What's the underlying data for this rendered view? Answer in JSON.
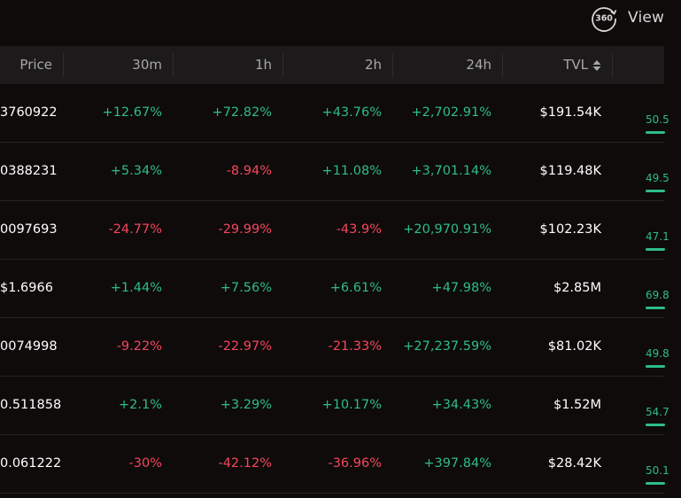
{
  "header_actions": {
    "view_label": "View",
    "view_icon": "360-view-icon"
  },
  "table": {
    "columns": [
      {
        "key": "price",
        "label": "Price"
      },
      {
        "key": "m30",
        "label": "30m"
      },
      {
        "key": "h1",
        "label": "1h"
      },
      {
        "key": "h2",
        "label": "2h"
      },
      {
        "key": "h24",
        "label": "24h"
      },
      {
        "key": "tvl",
        "label": "TVL",
        "sortable": true,
        "sort_icon": "sort-updown-icon"
      }
    ],
    "rows": [
      {
        "price": "3760922",
        "m30": "+12.67%",
        "h1": "+72.82%",
        "h2": "+43.76%",
        "h24": "+2,702.91%",
        "tvl": "$191.54K",
        "extra": "50.5"
      },
      {
        "price": "0388231",
        "m30": "+5.34%",
        "h1": "-8.94%",
        "h2": "+11.08%",
        "h24": "+3,701.14%",
        "tvl": "$119.48K",
        "extra": "49.5"
      },
      {
        "price": "0097693",
        "m30": "-24.77%",
        "h1": "-29.99%",
        "h2": "-43.9%",
        "h24": "+20,970.91%",
        "tvl": "$102.23K",
        "extra": "47.1"
      },
      {
        "price": "$1.6966",
        "m30": "+1.44%",
        "h1": "+7.56%",
        "h2": "+6.61%",
        "h24": "+47.98%",
        "tvl": "$2.85M",
        "extra": "69.8"
      },
      {
        "price": "0074998",
        "m30": "-9.22%",
        "h1": "-22.97%",
        "h2": "-21.33%",
        "h24": "+27,237.59%",
        "tvl": "$81.02K",
        "extra": "49.8"
      },
      {
        "price": "0.511858",
        "m30": "+2.1%",
        "h1": "+3.29%",
        "h2": "+10.17%",
        "h24": "+34.43%",
        "tvl": "$1.52M",
        "extra": "54.7"
      },
      {
        "price": "0.061222",
        "m30": "-30%",
        "h1": "-42.12%",
        "h2": "-36.96%",
        "h24": "+397.84%",
        "tvl": "$28.42K",
        "extra": "50.1"
      }
    ]
  },
  "colors": {
    "positive": "#2ebd85",
    "negative": "#f6465d",
    "background": "#0e0b0a",
    "header_bg": "#1c1a1a"
  }
}
